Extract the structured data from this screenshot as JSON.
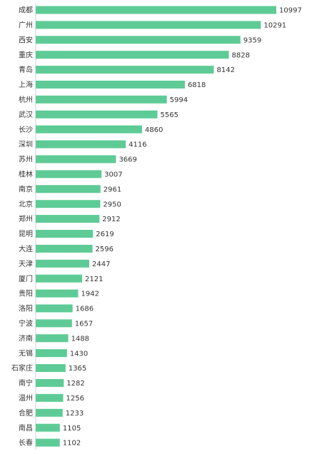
{
  "colors": {
    "bar": "#5ecb96",
    "text": "#333333",
    "axis": "#d0d0d0"
  },
  "chart_data": {
    "type": "bar",
    "orientation": "horizontal",
    "categories": [
      "成都",
      "广州",
      "西安",
      "重庆",
      "青岛",
      "上海",
      "杭州",
      "武汉",
      "长沙",
      "深圳",
      "苏州",
      "桂林",
      "南京",
      "北京",
      "郑州",
      "昆明",
      "大连",
      "天津",
      "厦门",
      "贵阳",
      "洛阳",
      "宁波",
      "济南",
      "无锡",
      "石家庄",
      "南宁",
      "温州",
      "合肥",
      "南昌",
      "长春"
    ],
    "values": [
      10997,
      10291,
      9359,
      8828,
      8142,
      6818,
      5994,
      5565,
      4860,
      4116,
      3669,
      3007,
      2961,
      2950,
      2912,
      2619,
      2596,
      2447,
      2121,
      1942,
      1686,
      1657,
      1488,
      1430,
      1365,
      1282,
      1256,
      1233,
      1105,
      1102
    ],
    "xlim": [
      0,
      10997
    ],
    "grid": false,
    "data_labels": true,
    "legend": "none"
  }
}
